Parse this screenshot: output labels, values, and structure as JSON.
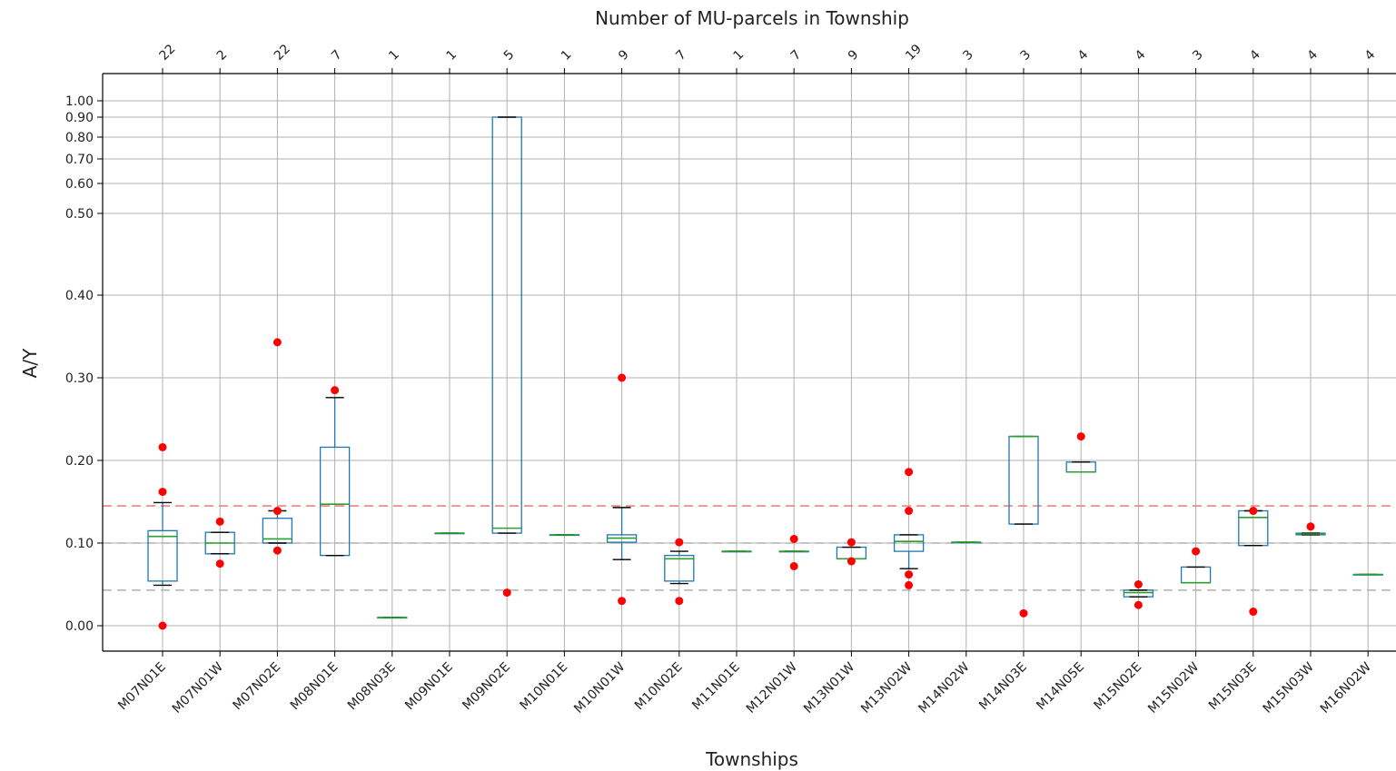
{
  "chart_data": {
    "type": "box",
    "title": "Number of MU-parcels in Township",
    "xlabel": "Townships",
    "ylabel": "A/Y",
    "y_scale": "stretched upper range (0.00–0.30 linear, compressed above 0.30)",
    "yticks": [
      {
        "value": 0.0,
        "label": "0.00"
      },
      {
        "value": 0.1,
        "label": "0.10"
      },
      {
        "value": 0.2,
        "label": "0.20"
      },
      {
        "value": 0.3,
        "label": "0.30"
      },
      {
        "value": 0.4,
        "label": "0.40"
      },
      {
        "value": 0.5,
        "label": "0.50"
      },
      {
        "value": 0.6,
        "label": "0.60"
      },
      {
        "value": 0.7,
        "label": "0.70"
      },
      {
        "value": 0.8,
        "label": "0.80"
      },
      {
        "value": 0.9,
        "label": "0.90"
      },
      {
        "value": 1.0,
        "label": "1.00"
      }
    ],
    "grid": true,
    "reference_lines": [
      {
        "value": 0.145,
        "color": "#f08080",
        "style": "dashed"
      },
      {
        "value": 0.1,
        "color": "#b0b0b0",
        "style": "dashed"
      },
      {
        "value": 0.043,
        "color": "#b0b0b0",
        "style": "dashed"
      }
    ],
    "colors": {
      "box": "#1f77b4",
      "median": "#2ca02c",
      "whisker_cap": "#000000",
      "outlier": "#ff0000",
      "grid": "#b0b0b0"
    },
    "categories": [
      "M07N01E",
      "M07N01W",
      "M07N02E",
      "M08N01E",
      "M08N03E",
      "M09N01E",
      "M09N02E",
      "M10N01E",
      "M10N01W",
      "M10N02E",
      "M11N01E",
      "M12N01W",
      "M13N01W",
      "M13N02W",
      "M14N02W",
      "M14N03E",
      "M14N05E",
      "M15N02E",
      "M15N02W",
      "M15N03E",
      "M15N03W",
      "M16N02W"
    ],
    "counts": [
      "22",
      "2",
      "22",
      "7",
      "1",
      "1",
      "5",
      "1",
      "9",
      "7",
      "1",
      "7",
      "9",
      "19",
      "3",
      "3",
      "4",
      "4",
      "3",
      "4",
      "4",
      "4"
    ],
    "boxes": [
      {
        "q1": 0.054,
        "median": 0.108,
        "q3": 0.115,
        "whislo": 0.049,
        "whishi": 0.149,
        "fliers": [
          0.0,
          0.162,
          0.216
        ]
      },
      {
        "q1": 0.087,
        "median": 0.1,
        "q3": 0.113,
        "whislo": 0.087,
        "whishi": 0.113,
        "fliers": [
          0.075,
          0.126
        ]
      },
      {
        "q1": 0.1,
        "median": 0.105,
        "q3": 0.13,
        "whislo": 0.1,
        "whishi": 0.139,
        "fliers": [
          0.091,
          0.139,
          0.343
        ]
      },
      {
        "q1": 0.085,
        "median": 0.147,
        "q3": 0.216,
        "whislo": 0.085,
        "whishi": 0.276,
        "fliers": [
          0.285
        ]
      },
      {
        "q1": 0.01,
        "median": 0.01,
        "q3": 0.01,
        "whislo": 0.01,
        "whishi": 0.01,
        "fliers": []
      },
      {
        "q1": 0.112,
        "median": 0.112,
        "q3": 0.112,
        "whislo": 0.112,
        "whishi": 0.112,
        "fliers": []
      },
      {
        "q1": 0.112,
        "median": 0.118,
        "q3": 0.9,
        "whislo": 0.112,
        "whishi": 0.9,
        "fliers": [
          0.04
        ]
      },
      {
        "q1": 0.11,
        "median": 0.11,
        "q3": 0.11,
        "whislo": 0.11,
        "whishi": 0.11,
        "fliers": []
      },
      {
        "q1": 0.101,
        "median": 0.106,
        "q3": 0.11,
        "whislo": 0.08,
        "whishi": 0.143,
        "fliers": [
          0.03,
          0.3
        ]
      },
      {
        "q1": 0.054,
        "median": 0.081,
        "q3": 0.085,
        "whislo": 0.051,
        "whishi": 0.09,
        "fliers": [
          0.03,
          0.101
        ]
      },
      {
        "q1": 0.09,
        "median": 0.09,
        "q3": 0.09,
        "whislo": 0.09,
        "whishi": 0.09,
        "fliers": []
      },
      {
        "q1": 0.09,
        "median": 0.09,
        "q3": 0.09,
        "whislo": 0.09,
        "whishi": 0.09,
        "fliers": [
          0.072,
          0.105
        ]
      },
      {
        "q1": 0.081,
        "median": 0.081,
        "q3": 0.095,
        "whislo": 0.081,
        "whishi": 0.095,
        "fliers": [
          0.078,
          0.101
        ]
      },
      {
        "q1": 0.09,
        "median": 0.102,
        "q3": 0.11,
        "whislo": 0.069,
        "whishi": 0.11,
        "fliers": [
          0.049,
          0.062,
          0.139,
          0.186
        ]
      },
      {
        "q1": 0.101,
        "median": 0.101,
        "q3": 0.101,
        "whislo": 0.101,
        "whishi": 0.101,
        "fliers": []
      },
      {
        "q1": 0.123,
        "median": 0.229,
        "q3": 0.229,
        "whislo": 0.123,
        "whishi": 0.229,
        "fliers": [
          0.015
        ]
      },
      {
        "q1": 0.186,
        "median": 0.186,
        "q3": 0.198,
        "whislo": 0.186,
        "whishi": 0.198,
        "fliers": [
          0.229
        ]
      },
      {
        "q1": 0.035,
        "median": 0.04,
        "q3": 0.043,
        "whislo": 0.035,
        "whishi": 0.043,
        "fliers": [
          0.025,
          0.05
        ]
      },
      {
        "q1": 0.052,
        "median": 0.052,
        "q3": 0.071,
        "whislo": 0.052,
        "whishi": 0.071,
        "fliers": [
          0.09
        ]
      },
      {
        "q1": 0.097,
        "median": 0.131,
        "q3": 0.139,
        "whislo": 0.097,
        "whishi": 0.139,
        "fliers": [
          0.017,
          0.139
        ]
      },
      {
        "q1": 0.11,
        "median": 0.111,
        "q3": 0.112,
        "whislo": 0.11,
        "whishi": 0.112,
        "fliers": [
          0.12
        ]
      },
      {
        "q1": 0.062,
        "median": 0.062,
        "q3": 0.062,
        "whislo": 0.062,
        "whishi": 0.062,
        "fliers": []
      }
    ]
  }
}
